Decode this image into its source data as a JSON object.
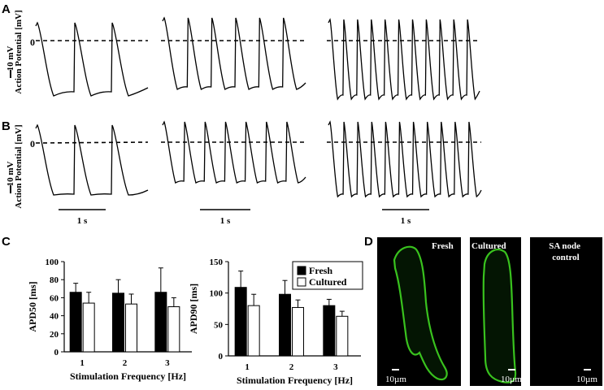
{
  "panels": {
    "a": "A",
    "b": "B",
    "c": "C",
    "d": "D"
  },
  "traces": {
    "zero_label": "0",
    "y_label": "Action Potential [mV]",
    "scale_v": "10 mV",
    "scale_t": "1 s",
    "groups": [
      {
        "row": "A",
        "spikes": 3
      },
      {
        "row": "A",
        "spikes": 6
      },
      {
        "row": "A",
        "spikes": 11
      },
      {
        "row": "B",
        "spikes": 3
      },
      {
        "row": "B",
        "spikes": 7
      },
      {
        "row": "B",
        "spikes": 11
      }
    ]
  },
  "chart_data": [
    {
      "type": "bar",
      "title": "",
      "xlabel": "Stimulation Frequency [Hz]",
      "ylabel": "APD50 [ms]",
      "categories": [
        "1",
        "2",
        "3"
      ],
      "ylim": [
        0,
        100
      ],
      "yticks": [
        "0",
        "20",
        "40",
        "60",
        "80",
        "100"
      ],
      "series": [
        {
          "name": "Fresh",
          "color": "#000000",
          "values": [
            66,
            65,
            66
          ],
          "errors": [
            10,
            15,
            27
          ]
        },
        {
          "name": "Cultured",
          "color": "#ffffff",
          "values": [
            54,
            53,
            50
          ],
          "errors": [
            12,
            11,
            10
          ]
        }
      ]
    },
    {
      "type": "bar",
      "title": "",
      "xlabel": "Stimulation Frequency [Hz]",
      "ylabel": "APD90 [ms]",
      "categories": [
        "1",
        "2",
        "3"
      ],
      "ylim": [
        0,
        150
      ],
      "yticks": [
        "0",
        "50",
        "100",
        "150"
      ],
      "legend_position": "top-right",
      "series": [
        {
          "name": "Fresh",
          "color": "#000000",
          "values": [
            109,
            98,
            80
          ],
          "errors": [
            26,
            22,
            10
          ]
        },
        {
          "name": "Cultured",
          "color": "#ffffff",
          "values": [
            80,
            77,
            63
          ],
          "errors": [
            18,
            12,
            8
          ]
        }
      ]
    }
  ],
  "images": {
    "labels": [
      "Fresh",
      "Cultured",
      "SA node\ncontrol"
    ],
    "scale": "10µm",
    "stain_color": "#39c21e"
  }
}
